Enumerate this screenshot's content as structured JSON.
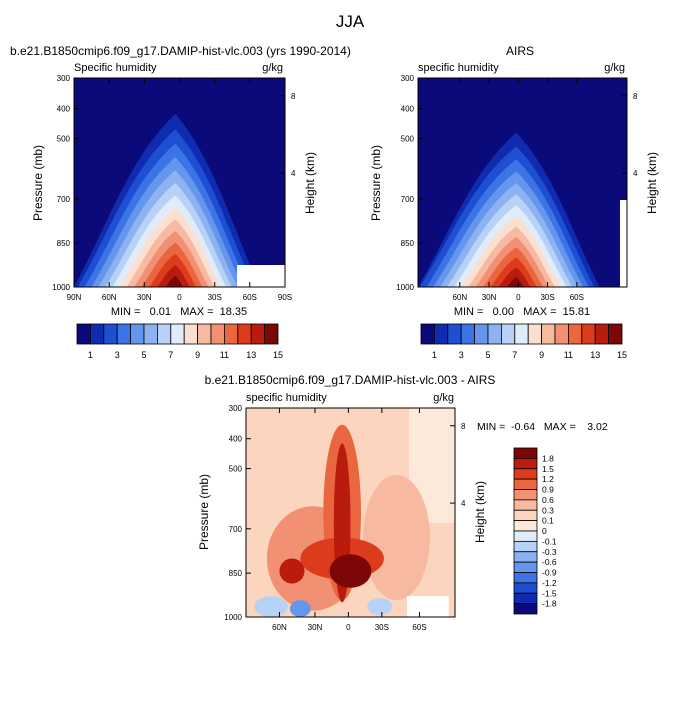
{
  "figure_title": "JJA",
  "chart_data": [
    {
      "type": "heatmap",
      "title": "b.e21.B1850cmip6.f09_g17.DAMIP-hist-vlc.003 (yrs 1990-2014)",
      "left_string": "Specific humidity",
      "right_string": "g/kg",
      "ylabel": "Pressure (mb)",
      "ylabel_right": "Height (km)",
      "yticks": [
        "300",
        "400",
        "500",
        "700",
        "850",
        "1000"
      ],
      "yticks_right": [
        "8",
        "4"
      ],
      "xticks": [
        "90N",
        "60N",
        "30N",
        "0",
        "30S",
        "60S",
        "90S"
      ],
      "stats": "MIN =   0.01   MAX =  18.35",
      "colorbar": {
        "levels": [
          "1",
          "3",
          "5",
          "7",
          "9",
          "11",
          "13",
          "15"
        ],
        "colors": [
          "#0a0a7a",
          "#0f2bb0",
          "#1e4fd2",
          "#3c74e6",
          "#6496ee",
          "#8cb2f2",
          "#b8d1f6",
          "#e0ecfa",
          "#fbe0d0",
          "#f7baa0",
          "#f29073",
          "#e9663f",
          "#dc3c1c",
          "#b91c0c",
          "#7d0606"
        ]
      }
    },
    {
      "type": "heatmap",
      "title": "AIRS",
      "left_string": "specific humidity",
      "right_string": "g/kg",
      "ylabel": "Pressure (mb)",
      "ylabel_right": "Height (km)",
      "yticks": [
        "300",
        "400",
        "500",
        "700",
        "850",
        "1000"
      ],
      "yticks_right": [
        "8",
        "4"
      ],
      "xticks": [
        "60N",
        "30N",
        "0",
        "30S",
        "60S"
      ],
      "stats": "MIN =   0.00   MAX =  15.81",
      "colorbar": {
        "levels": [
          "1",
          "3",
          "5",
          "7",
          "9",
          "11",
          "13",
          "15"
        ],
        "colors": [
          "#0a0a7a",
          "#0f2bb0",
          "#1e4fd2",
          "#3c74e6",
          "#6496ee",
          "#8cb2f2",
          "#b8d1f6",
          "#e0ecfa",
          "#fbe0d0",
          "#f7baa0",
          "#f29073",
          "#e9663f",
          "#dc3c1c",
          "#b91c0c",
          "#7d0606"
        ]
      }
    },
    {
      "type": "heatmap",
      "title": "b.e21.B1850cmip6.f09_g17.DAMIP-hist-vlc.003 - AIRS",
      "left_string": "specific humidity",
      "right_string": "g/kg",
      "ylabel": "Pressure (mb)",
      "ylabel_right": "Height (km)",
      "yticks": [
        "300",
        "400",
        "500",
        "700",
        "850",
        "1000"
      ],
      "yticks_right": [
        "8",
        "4"
      ],
      "xticks": [
        "60N",
        "30N",
        "0",
        "30S",
        "60S"
      ],
      "stats": "MIN =  -0.64   MAX =    3.02",
      "colorbar": {
        "levels": [
          "1.8",
          "1.5",
          "1.2",
          "0.9",
          "0.6",
          "0.3",
          "0.1",
          "0",
          "-0.1",
          "-0.3",
          "-0.6",
          "-0.9",
          "-1.2",
          "-1.5",
          "-1.8"
        ],
        "colors": [
          "#7d0606",
          "#b91c0c",
          "#dc3c1c",
          "#e9663f",
          "#f29073",
          "#f7baa0",
          "#fbd5bd",
          "#fde9da",
          "#e0ecfa",
          "#b8d1f6",
          "#8cb2f2",
          "#6496ee",
          "#3c74e6",
          "#1e4fd2",
          "#0f2bb0",
          "#0a0a7a"
        ]
      }
    }
  ]
}
